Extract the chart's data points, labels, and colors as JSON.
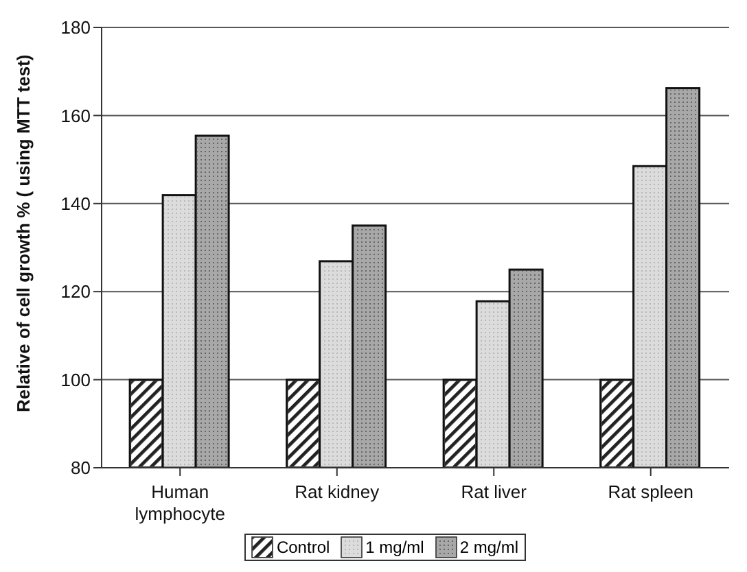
{
  "chart_data": {
    "type": "bar",
    "ylabel": "Relative of cell growth % ( using MTT test)",
    "categories": [
      "Human lymphocyte",
      "Rat kidney",
      "Rat liver",
      "Rat spleen"
    ],
    "series": [
      {
        "name": "Control",
        "color": "#808080",
        "values": [
          100,
          100,
          100,
          100
        ]
      },
      {
        "name": "1 mg/ml",
        "color": "#dcdcdc",
        "values": [
          141.9,
          126.9,
          117.8,
          148.5
        ]
      },
      {
        "name": "2 mg/ml",
        "color": "#a8a8a8",
        "values": [
          155.4,
          135,
          125,
          166.2
        ]
      }
    ],
    "ylim": [
      80,
      180
    ],
    "yticks": [
      80,
      100,
      120,
      140,
      160,
      180
    ],
    "grid": "y",
    "legend": "bottom"
  }
}
